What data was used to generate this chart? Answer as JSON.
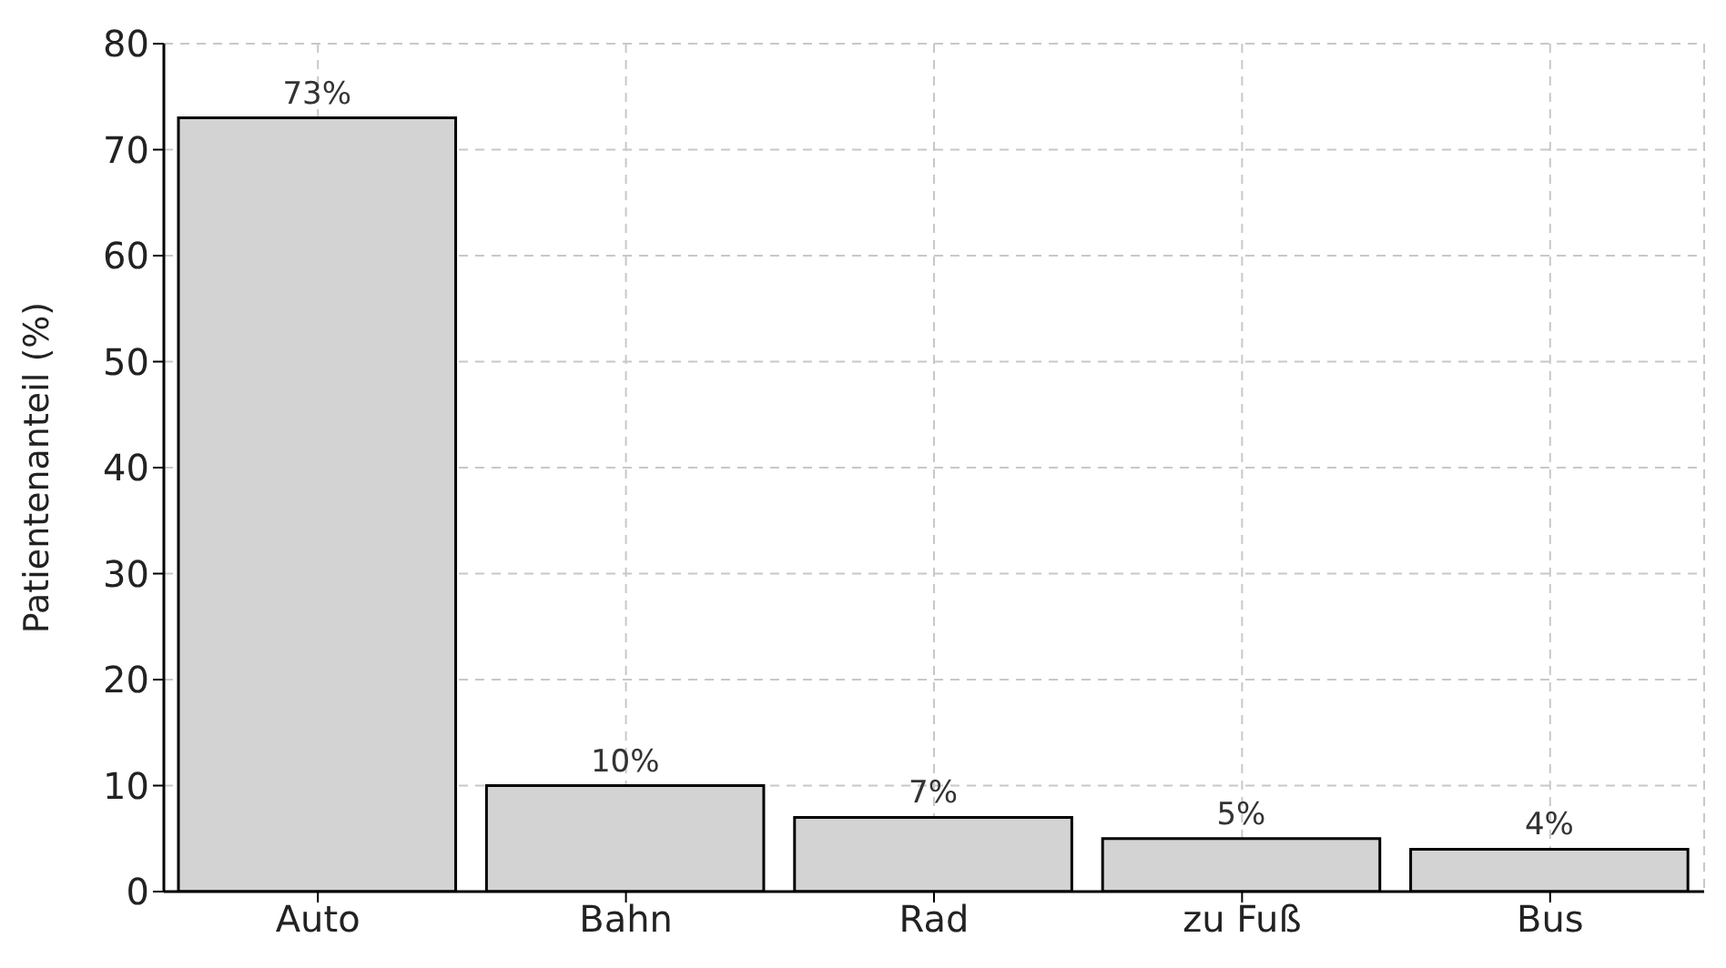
{
  "chart_data": {
    "type": "bar",
    "ylabel": "Patientenanteil (%)",
    "categories": [
      "Auto",
      "Bahn",
      "Rad",
      "zu Fuß",
      "Bus"
    ],
    "values": [
      73,
      10,
      7,
      5,
      4
    ],
    "value_labels": [
      "73%",
      "10%",
      "7%",
      "5%",
      "4%"
    ],
    "color": "#d3d3d3",
    "ylim": [
      0,
      80
    ],
    "yticks": [
      0,
      10,
      20,
      30,
      40,
      50,
      60,
      70,
      80
    ],
    "grid": true
  }
}
